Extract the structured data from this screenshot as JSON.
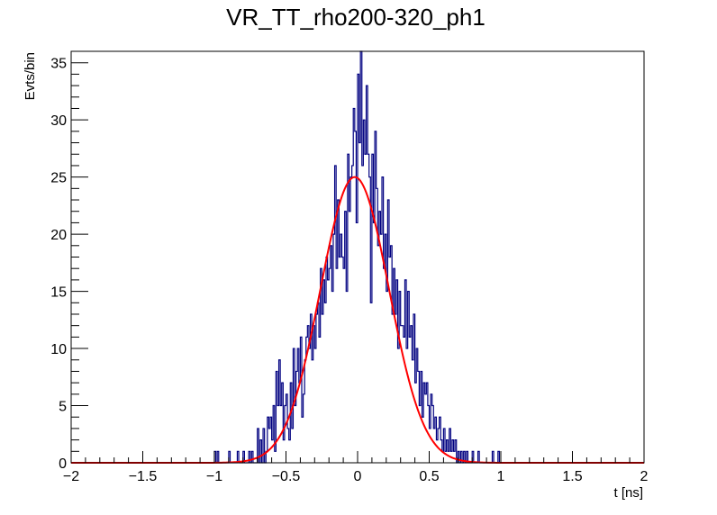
{
  "chart_data": {
    "type": "histogram",
    "title": "VR_TT_rho200-320_ph1",
    "xlabel": "t [ns]",
    "ylabel": "Evts/bin",
    "xlim": [
      -2,
      2
    ],
    "ylim": [
      0,
      36
    ],
    "x_ticks": [
      -2,
      -1.5,
      -1,
      -0.5,
      0,
      0.5,
      1,
      1.5,
      2
    ],
    "x_tick_labels": [
      "−2",
      "−1.5",
      "−1",
      "−0.5",
      "0",
      "0.5",
      "1",
      "1.5",
      "2"
    ],
    "y_ticks": [
      0,
      5,
      10,
      15,
      20,
      25,
      30,
      35
    ],
    "y_tick_labels": [
      "0",
      "5",
      "10",
      "15",
      "20",
      "25",
      "30",
      "35"
    ],
    "bin_width": 0.01,
    "histogram": {
      "name": "data",
      "color": "#000080",
      "bins": [
        {
          "x": -1.0,
          "y": 1
        },
        {
          "x": -0.98,
          "y": 1
        },
        {
          "x": -0.9,
          "y": 1
        },
        {
          "x": -0.84,
          "y": 1
        },
        {
          "x": -0.8,
          "y": 1
        },
        {
          "x": -0.76,
          "y": 1
        },
        {
          "x": -0.74,
          "y": 1
        },
        {
          "x": -0.7,
          "y": 3
        },
        {
          "x": -0.68,
          "y": 2
        },
        {
          "x": -0.66,
          "y": 3
        },
        {
          "x": -0.64,
          "y": 1
        },
        {
          "x": -0.63,
          "y": 4
        },
        {
          "x": -0.62,
          "y": 3
        },
        {
          "x": -0.61,
          "y": 4
        },
        {
          "x": -0.6,
          "y": 2
        },
        {
          "x": -0.59,
          "y": 5
        },
        {
          "x": -0.58,
          "y": 1
        },
        {
          "x": -0.57,
          "y": 8
        },
        {
          "x": -0.56,
          "y": 5
        },
        {
          "x": -0.55,
          "y": 9
        },
        {
          "x": -0.54,
          "y": 5
        },
        {
          "x": -0.53,
          "y": 7
        },
        {
          "x": -0.52,
          "y": 2
        },
        {
          "x": -0.51,
          "y": 5
        },
        {
          "x": -0.5,
          "y": 6
        },
        {
          "x": -0.49,
          "y": 3
        },
        {
          "x": -0.48,
          "y": 2
        },
        {
          "x": -0.47,
          "y": 7
        },
        {
          "x": -0.46,
          "y": 3
        },
        {
          "x": -0.45,
          "y": 10
        },
        {
          "x": -0.44,
          "y": 5
        },
        {
          "x": -0.43,
          "y": 8
        },
        {
          "x": -0.42,
          "y": 10
        },
        {
          "x": -0.41,
          "y": 7
        },
        {
          "x": -0.4,
          "y": 11
        },
        {
          "x": -0.39,
          "y": 4
        },
        {
          "x": -0.38,
          "y": 6
        },
        {
          "x": -0.37,
          "y": 9
        },
        {
          "x": -0.36,
          "y": 11
        },
        {
          "x": -0.35,
          "y": 12
        },
        {
          "x": -0.34,
          "y": 10
        },
        {
          "x": -0.33,
          "y": 13
        },
        {
          "x": -0.32,
          "y": 9
        },
        {
          "x": -0.31,
          "y": 12
        },
        {
          "x": -0.3,
          "y": 10
        },
        {
          "x": -0.29,
          "y": 13
        },
        {
          "x": -0.28,
          "y": 14
        },
        {
          "x": -0.27,
          "y": 11
        },
        {
          "x": -0.26,
          "y": 17
        },
        {
          "x": -0.25,
          "y": 13
        },
        {
          "x": -0.24,
          "y": 16
        },
        {
          "x": -0.23,
          "y": 14
        },
        {
          "x": -0.22,
          "y": 18
        },
        {
          "x": -0.21,
          "y": 16
        },
        {
          "x": -0.2,
          "y": 17
        },
        {
          "x": -0.19,
          "y": 19
        },
        {
          "x": -0.18,
          "y": 15
        },
        {
          "x": -0.17,
          "y": 20
        },
        {
          "x": -0.16,
          "y": 26
        },
        {
          "x": -0.15,
          "y": 17
        },
        {
          "x": -0.14,
          "y": 23
        },
        {
          "x": -0.13,
          "y": 18
        },
        {
          "x": -0.12,
          "y": 20
        },
        {
          "x": -0.11,
          "y": 18
        },
        {
          "x": -0.1,
          "y": 17
        },
        {
          "x": -0.09,
          "y": 22
        },
        {
          "x": -0.08,
          "y": 15
        },
        {
          "x": -0.07,
          "y": 27
        },
        {
          "x": -0.06,
          "y": 22
        },
        {
          "x": -0.05,
          "y": 25
        },
        {
          "x": -0.04,
          "y": 26
        },
        {
          "x": -0.03,
          "y": 31
        },
        {
          "x": -0.02,
          "y": 29
        },
        {
          "x": -0.01,
          "y": 21
        },
        {
          "x": 0.0,
          "y": 34
        },
        {
          "x": 0.01,
          "y": 28
        },
        {
          "x": 0.02,
          "y": 36
        },
        {
          "x": 0.03,
          "y": 26
        },
        {
          "x": 0.04,
          "y": 30
        },
        {
          "x": 0.05,
          "y": 27
        },
        {
          "x": 0.06,
          "y": 33
        },
        {
          "x": 0.07,
          "y": 27
        },
        {
          "x": 0.08,
          "y": 25
        },
        {
          "x": 0.09,
          "y": 14
        },
        {
          "x": 0.1,
          "y": 27
        },
        {
          "x": 0.11,
          "y": 21
        },
        {
          "x": 0.12,
          "y": 29
        },
        {
          "x": 0.13,
          "y": 24
        },
        {
          "x": 0.14,
          "y": 19
        },
        {
          "x": 0.15,
          "y": 22
        },
        {
          "x": 0.16,
          "y": 20
        },
        {
          "x": 0.17,
          "y": 25
        },
        {
          "x": 0.18,
          "y": 17
        },
        {
          "x": 0.19,
          "y": 20
        },
        {
          "x": 0.2,
          "y": 15
        },
        {
          "x": 0.21,
          "y": 23
        },
        {
          "x": 0.22,
          "y": 18
        },
        {
          "x": 0.23,
          "y": 19
        },
        {
          "x": 0.24,
          "y": 13
        },
        {
          "x": 0.25,
          "y": 17
        },
        {
          "x": 0.26,
          "y": 13
        },
        {
          "x": 0.27,
          "y": 16
        },
        {
          "x": 0.28,
          "y": 10
        },
        {
          "x": 0.29,
          "y": 15
        },
        {
          "x": 0.3,
          "y": 12
        },
        {
          "x": 0.31,
          "y": 12
        },
        {
          "x": 0.32,
          "y": 11
        },
        {
          "x": 0.33,
          "y": 16
        },
        {
          "x": 0.34,
          "y": 10
        },
        {
          "x": 0.35,
          "y": 15
        },
        {
          "x": 0.36,
          "y": 11
        },
        {
          "x": 0.37,
          "y": 12
        },
        {
          "x": 0.38,
          "y": 9
        },
        {
          "x": 0.39,
          "y": 13
        },
        {
          "x": 0.4,
          "y": 7
        },
        {
          "x": 0.41,
          "y": 10
        },
        {
          "x": 0.42,
          "y": 8
        },
        {
          "x": 0.43,
          "y": 5
        },
        {
          "x": 0.44,
          "y": 8
        },
        {
          "x": 0.45,
          "y": 4
        },
        {
          "x": 0.46,
          "y": 7
        },
        {
          "x": 0.47,
          "y": 6
        },
        {
          "x": 0.48,
          "y": 7
        },
        {
          "x": 0.49,
          "y": 5
        },
        {
          "x": 0.5,
          "y": 3
        },
        {
          "x": 0.51,
          "y": 6
        },
        {
          "x": 0.52,
          "y": 5
        },
        {
          "x": 0.53,
          "y": 3
        },
        {
          "x": 0.54,
          "y": 4
        },
        {
          "x": 0.55,
          "y": 2
        },
        {
          "x": 0.56,
          "y": 3
        },
        {
          "x": 0.57,
          "y": 4
        },
        {
          "x": 0.58,
          "y": 2
        },
        {
          "x": 0.59,
          "y": 1
        },
        {
          "x": 0.6,
          "y": 3
        },
        {
          "x": 0.61,
          "y": 1
        },
        {
          "x": 0.62,
          "y": 2
        },
        {
          "x": 0.63,
          "y": 1
        },
        {
          "x": 0.64,
          "y": 3
        },
        {
          "x": 0.65,
          "y": 1
        },
        {
          "x": 0.66,
          "y": 2
        },
        {
          "x": 0.67,
          "y": 1
        },
        {
          "x": 0.68,
          "y": 2
        },
        {
          "x": 0.7,
          "y": 1
        },
        {
          "x": 0.72,
          "y": 1
        },
        {
          "x": 0.74,
          "y": 1
        },
        {
          "x": 0.76,
          "y": 1
        },
        {
          "x": 0.8,
          "y": 1
        },
        {
          "x": 0.84,
          "y": 1
        },
        {
          "x": 0.94,
          "y": 1
        },
        {
          "x": 0.98,
          "y": 1
        }
      ]
    },
    "fit": {
      "name": "gaussian-fit",
      "type": "gaussian",
      "color": "#ff0000",
      "amplitude": 25,
      "mean": -0.02,
      "sigma": 0.24
    }
  }
}
